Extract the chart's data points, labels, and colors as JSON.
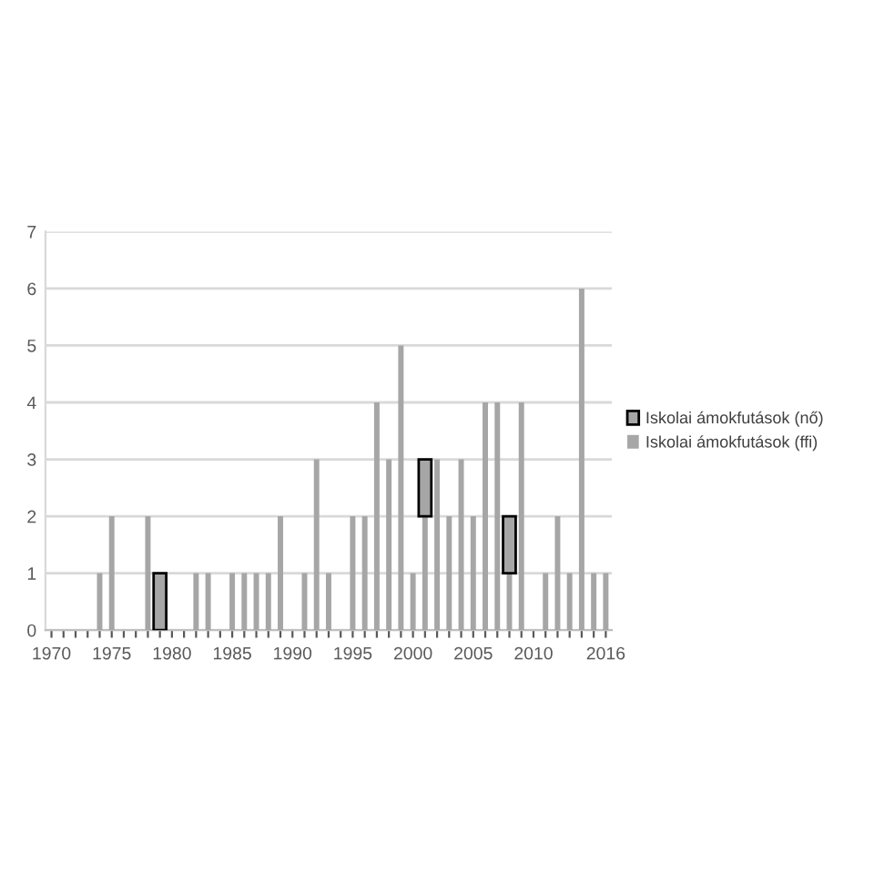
{
  "chart_data": {
    "type": "bar",
    "stacked": true,
    "categories": [
      "1970",
      null,
      null,
      null,
      null,
      "1975",
      null,
      null,
      null,
      null,
      "1980",
      null,
      null,
      null,
      null,
      "1985",
      null,
      null,
      null,
      null,
      "1990",
      null,
      null,
      null,
      null,
      "1995",
      null,
      null,
      null,
      null,
      "2000",
      null,
      null,
      null,
      null,
      "2005",
      null,
      null,
      null,
      null,
      "2010",
      null,
      null,
      null,
      null,
      null,
      "2016"
    ],
    "series": [
      {
        "name": "Iskolai ámokfutások (ffi)",
        "color": "#a6a6a6",
        "values": [
          0,
          0,
          0,
          0,
          1,
          2,
          0,
          0,
          2,
          0,
          0,
          0,
          1,
          1,
          0,
          1,
          1,
          1,
          1,
          2,
          0,
          1,
          3,
          1,
          0,
          2,
          2,
          4,
          3,
          5,
          1,
          2,
          3,
          2,
          3,
          2,
          4,
          4,
          1,
          4,
          0,
          1,
          2,
          1,
          6,
          1,
          1
        ]
      },
      {
        "name": "Iskolai ámokfutások (nő)",
        "color": "#a6a6a6",
        "values": [
          null,
          null,
          null,
          null,
          null,
          null,
          null,
          null,
          null,
          1,
          null,
          null,
          null,
          null,
          null,
          null,
          null,
          null,
          null,
          null,
          null,
          null,
          null,
          null,
          null,
          null,
          null,
          null,
          null,
          null,
          null,
          1,
          null,
          null,
          null,
          null,
          null,
          null,
          1,
          null,
          null,
          null,
          null,
          null,
          null,
          null,
          null
        ]
      }
    ],
    "ylim": [
      0,
      7
    ],
    "yticks": [
      0,
      1,
      2,
      3,
      4,
      5,
      6,
      7
    ],
    "grid": "y",
    "legend": "right"
  }
}
